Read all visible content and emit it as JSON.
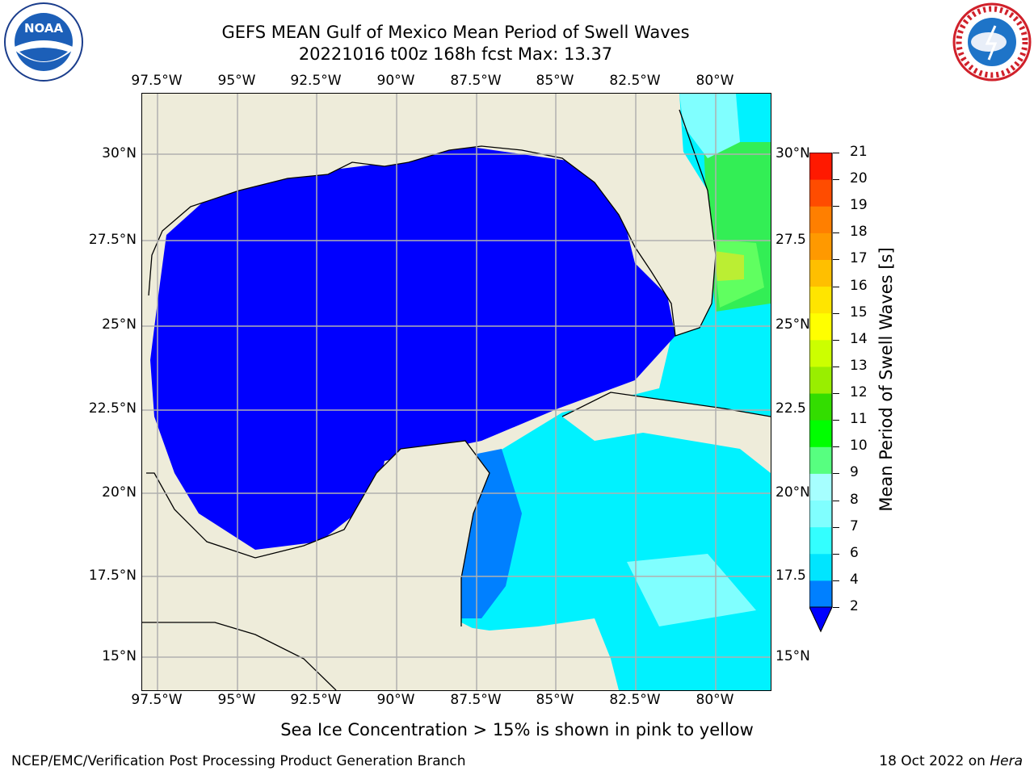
{
  "title": {
    "line1": "GEFS MEAN Gulf of Mexico Mean Period of Swell Waves",
    "line2": "20221016 t00z 168h fcst   Max: 13.37"
  },
  "logos": {
    "left": {
      "icon": "noaa-logo",
      "text": "NOAA"
    },
    "right": {
      "icon": "nws-logo",
      "text": "NATIONAL WEATHER SERVICE"
    }
  },
  "map": {
    "lon_labels": [
      "97.5°W",
      "95°W",
      "92.5°W",
      "90°W",
      "87.5°W",
      "85°W",
      "82.5°W",
      "80°W"
    ],
    "lat_labels": [
      "30°N",
      "27.5°N",
      "25°N",
      "22.5°N",
      "20°N",
      "17.5°N",
      "15°N"
    ],
    "lat_labels_right": [
      "30°N",
      "27.5",
      "25°N",
      "22.5",
      "20°N",
      "17.5",
      "15°N"
    ],
    "colors": {
      "land": "#eeecda",
      "water_low": "#0000ff",
      "grid": "#b0b0b0",
      "coast": "#000000"
    }
  },
  "colorbar": {
    "label": "Mean Period of Swell Waves [s]",
    "ticks": [
      "2",
      "4",
      "6",
      "7",
      "8",
      "9",
      "10",
      "11",
      "12",
      "13",
      "14",
      "15",
      "16",
      "17",
      "18",
      "19",
      "20",
      "21"
    ],
    "colors": [
      "#0080ff",
      "#00e5ff",
      "#33ffff",
      "#80ffff",
      "#a6ffff",
      "#57ff80",
      "#00ff00",
      "#33dd00",
      "#99ee00",
      "#ccff00",
      "#ffff00",
      "#ffe500",
      "#ffbf00",
      "#ff9900",
      "#ff7f00",
      "#ff4c00",
      "#ff1900"
    ],
    "under_color": "#0000ff"
  },
  "note": "Sea Ice Concentration > 15% is shown in pink to yellow",
  "footer": {
    "left": "NCEP/EMC/Verification Post Processing Product Generation Branch",
    "date": "18 Oct 2022 on ",
    "machine": "Hera"
  }
}
